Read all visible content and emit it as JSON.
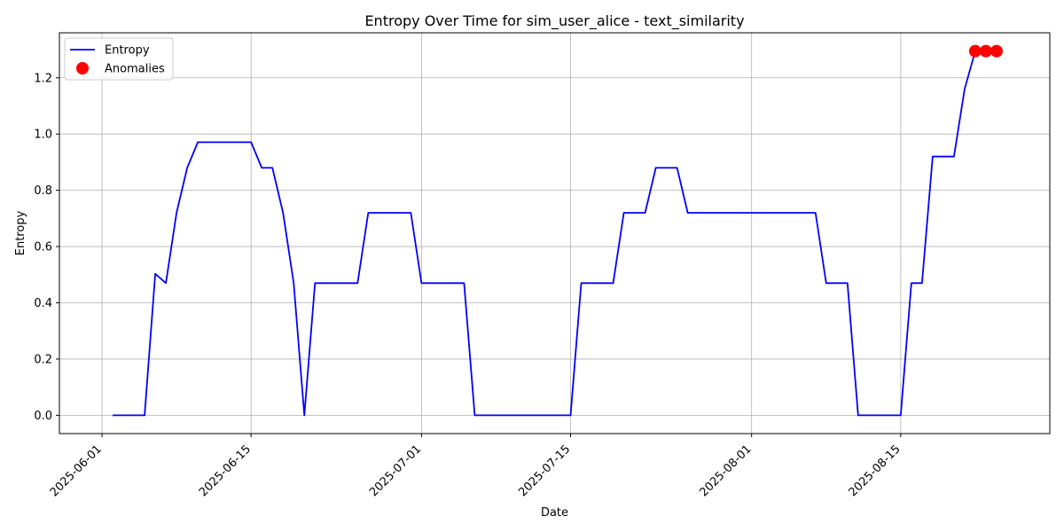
{
  "chart_data": {
    "type": "line",
    "title": "Entropy Over Time for sim_user_alice - text_similarity",
    "xlabel": "Date",
    "ylabel": "Entropy",
    "x_tick_labels": [
      "2025-06-01",
      "2025-06-15",
      "2025-07-01",
      "2025-07-15",
      "2025-08-01",
      "2025-08-15"
    ],
    "y_tick_labels": [
      "0.0",
      "0.2",
      "0.4",
      "0.6",
      "0.8",
      "1.0",
      "1.2"
    ],
    "xlim": [
      "2025-05-28",
      "2025-08-29"
    ],
    "ylim": [
      -0.065,
      1.36
    ],
    "grid": true,
    "legend_position": "top-left",
    "series": [
      {
        "name": "Entropy",
        "kind": "line",
        "color": "#0000ff",
        "points": [
          [
            "2025-06-02",
            0.0
          ],
          [
            "2025-06-05",
            0.0
          ],
          [
            "2025-06-06",
            0.503
          ],
          [
            "2025-06-07",
            0.47
          ],
          [
            "2025-06-08",
            0.72
          ],
          [
            "2025-06-09",
            0.88
          ],
          [
            "2025-06-10",
            0.971
          ],
          [
            "2025-06-15",
            0.971
          ],
          [
            "2025-06-16",
            0.88
          ],
          [
            "2025-06-17",
            0.88
          ],
          [
            "2025-06-18",
            0.72
          ],
          [
            "2025-06-19",
            0.47
          ],
          [
            "2025-06-20",
            0.0
          ],
          [
            "2025-06-21",
            0.47
          ],
          [
            "2025-06-25",
            0.47
          ],
          [
            "2025-06-26",
            0.72
          ],
          [
            "2025-06-30",
            0.72
          ],
          [
            "2025-07-01",
            0.47
          ],
          [
            "2025-07-05",
            0.47
          ],
          [
            "2025-07-06",
            0.0
          ],
          [
            "2025-07-15",
            0.0
          ],
          [
            "2025-07-16",
            0.47
          ],
          [
            "2025-07-19",
            0.47
          ],
          [
            "2025-07-20",
            0.72
          ],
          [
            "2025-07-22",
            0.72
          ],
          [
            "2025-07-23",
            0.88
          ],
          [
            "2025-07-25",
            0.88
          ],
          [
            "2025-07-26",
            0.72
          ],
          [
            "2025-08-07",
            0.72
          ],
          [
            "2025-08-08",
            0.47
          ],
          [
            "2025-08-10",
            0.47
          ],
          [
            "2025-08-11",
            0.0
          ],
          [
            "2025-08-15",
            0.0
          ],
          [
            "2025-08-16",
            0.47
          ],
          [
            "2025-08-17",
            0.47
          ],
          [
            "2025-08-18",
            0.92
          ],
          [
            "2025-08-20",
            0.92
          ],
          [
            "2025-08-21",
            1.16
          ],
          [
            "2025-08-22",
            1.295
          ]
        ]
      },
      {
        "name": "Anomalies",
        "kind": "scatter",
        "color": "#ff0000",
        "points": [
          [
            "2025-08-22",
            1.295
          ],
          [
            "2025-08-23",
            1.295
          ],
          [
            "2025-08-24",
            1.295
          ]
        ]
      }
    ]
  }
}
